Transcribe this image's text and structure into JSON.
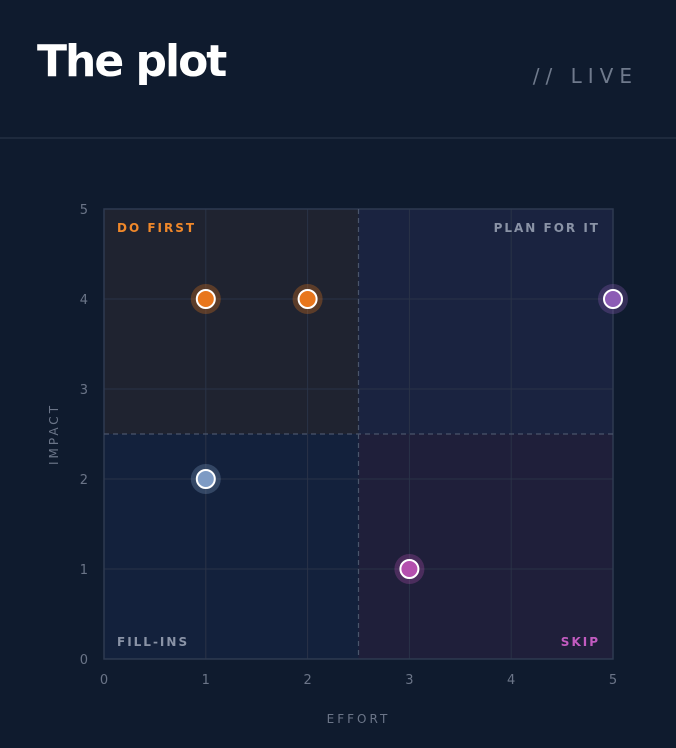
{
  "header": {
    "title": "The plot",
    "status": "// LIVE"
  },
  "chart_data": {
    "type": "scatter",
    "xlabel": "EFFORT",
    "ylabel": "IMPACT",
    "xlim": [
      0,
      5
    ],
    "ylim": [
      0,
      5
    ],
    "xticks": [
      "0",
      "1",
      "2",
      "3",
      "4",
      "5"
    ],
    "yticks": [
      "0",
      "1",
      "2",
      "3",
      "4",
      "5"
    ],
    "grid": true,
    "divider": {
      "x": 2.5,
      "y": 2.5
    },
    "quadrants": [
      {
        "label": "DO FIRST",
        "color": "#f0882a",
        "fill": "#1f2330",
        "position": "top-left"
      },
      {
        "label": "PLAN FOR IT",
        "color": "#8a93a6",
        "fill": "#1a2340",
        "position": "top-right"
      },
      {
        "label": "FILL-INS",
        "color": "#8a93a6",
        "fill": "#13213c",
        "position": "bottom-left"
      },
      {
        "label": "SKIP",
        "color": "#c25bc0",
        "fill": "#1f1f3a",
        "position": "bottom-right"
      }
    ],
    "points": [
      {
        "x": 1,
        "y": 4,
        "color": "#e8761c"
      },
      {
        "x": 2,
        "y": 4,
        "color": "#e8761c"
      },
      {
        "x": 5,
        "y": 4,
        "color": "#8c5cb5"
      },
      {
        "x": 1,
        "y": 2,
        "color": "#7e9bc4"
      },
      {
        "x": 3,
        "y": 1,
        "color": "#b44fae"
      }
    ]
  }
}
